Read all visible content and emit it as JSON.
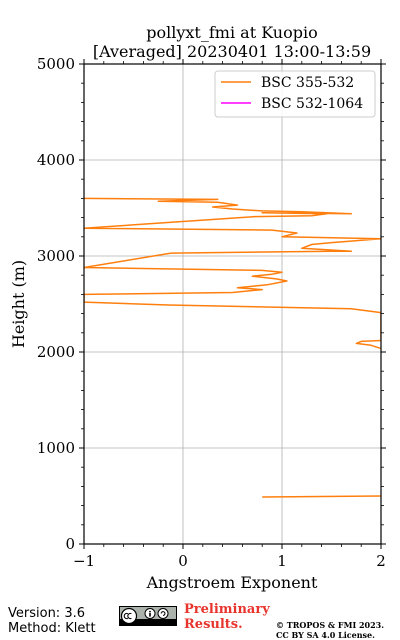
{
  "chart_data": {
    "type": "line",
    "title": "pollyxt_fmi at Kuopio",
    "subtitle": "[Averaged] 20230401 13:00-13:59",
    "xlabel": "Angstroem Exponent",
    "ylabel": "Height (m)",
    "xlim": [
      -1,
      2
    ],
    "ylim": [
      0,
      5000
    ],
    "xticks": [
      -1,
      0,
      1,
      2
    ],
    "xtick_labels": [
      "−1",
      "0",
      "1",
      "2"
    ],
    "yticks": [
      0,
      1000,
      2000,
      3000,
      4000,
      5000
    ],
    "ytick_labels": [
      "0",
      "1000",
      "2000",
      "3000",
      "4000",
      "5000"
    ],
    "grid": true,
    "legend_position": "top-right",
    "series": [
      {
        "name": "BSC 355-532",
        "color": "#ff7f0e",
        "points": [
          [
            0.8,
            490
          ],
          [
            2.05,
            500
          ],
          [
            2.05,
            2020
          ],
          [
            1.9,
            2070
          ],
          [
            1.75,
            2090
          ],
          [
            1.8,
            2110
          ],
          [
            2.0,
            2120
          ],
          [
            2.0,
            2410
          ],
          [
            1.7,
            2450
          ],
          [
            -0.15,
            2490
          ],
          [
            -1.0,
            2520
          ],
          [
            -1.0,
            2600
          ],
          [
            0.5,
            2620
          ],
          [
            0.8,
            2650
          ],
          [
            0.55,
            2670
          ],
          [
            0.85,
            2700
          ],
          [
            1.05,
            2740
          ],
          [
            0.95,
            2760
          ],
          [
            0.7,
            2790
          ],
          [
            0.9,
            2810
          ],
          [
            1.0,
            2830
          ],
          [
            0.8,
            2850
          ],
          [
            -1.0,
            2880
          ],
          [
            -0.12,
            3030
          ],
          [
            1.5,
            3050
          ],
          [
            1.7,
            3050
          ],
          [
            1.2,
            3080
          ],
          [
            1.3,
            3120
          ],
          [
            1.5,
            3140
          ],
          [
            2.0,
            3180
          ],
          [
            1.0,
            3200
          ],
          [
            1.15,
            3240
          ],
          [
            0.9,
            3270
          ],
          [
            -1.0,
            3290
          ],
          [
            0.73,
            3410
          ],
          [
            1.3,
            3420
          ],
          [
            1.45,
            3440
          ],
          [
            0.8,
            3450
          ],
          [
            1.7,
            3440
          ],
          [
            1.2,
            3460
          ],
          [
            0.8,
            3470
          ],
          [
            0.5,
            3490
          ],
          [
            0.3,
            3510
          ],
          [
            0.55,
            3530
          ],
          [
            0.35,
            3560
          ],
          [
            -0.25,
            3570
          ],
          [
            0.35,
            3590
          ],
          [
            -1.0,
            3600
          ]
        ]
      },
      {
        "name": "BSC 532-1064",
        "color": "#ff00ff",
        "points": []
      }
    ]
  },
  "footer": {
    "version": "Version: 3.6",
    "method": "Method: Klett",
    "preliminary_line1": "Preliminary",
    "preliminary_line2": "Results.",
    "copyright_line1": "© TROPOS & FMI 2023.",
    "copyright_line2": "CC BY SA 4.0 License."
  }
}
